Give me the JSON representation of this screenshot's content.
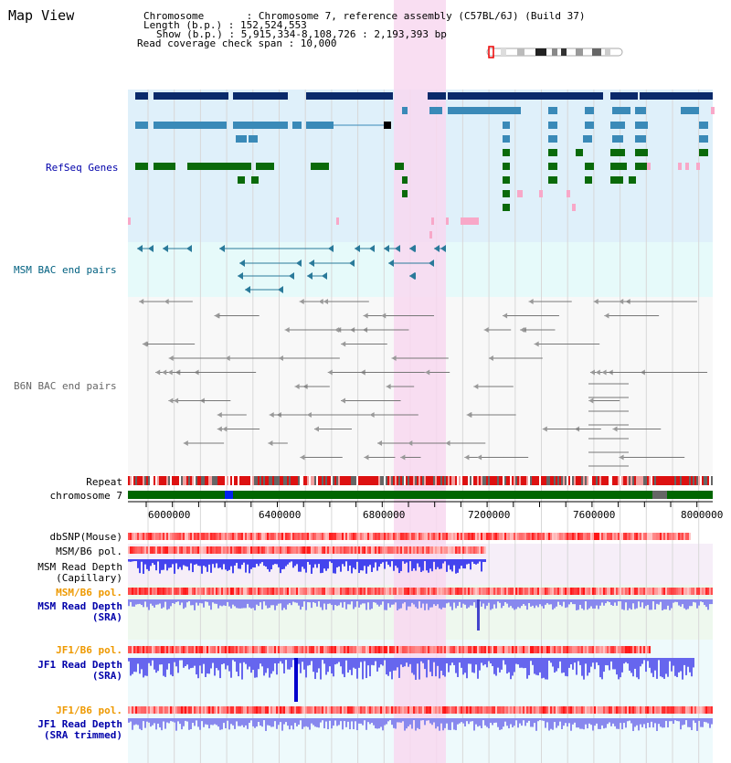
{
  "title": "Map View",
  "info": {
    "chromosome_label": "Chromosome       : Chromosome 7, reference assembly (C57BL/6J) (Build 37)",
    "length_label": "Length (b.p.) : 152,524,553",
    "show_label": "Show (b.p.) : 5,915,334-8,108,726 : 2,193,393 bp",
    "coverage_label": "Read coverage check span : 10,000"
  },
  "tracks": {
    "refseq": "RefSeq Genes",
    "msm_bac": "MSM BAC end pairs",
    "b6n_bac": "B6N BAC end pairs",
    "repeat": "Repeat",
    "chromosome": "chromosome 7",
    "dbsnp": "dbSNP(Mouse)",
    "msm_b6_pol_1": "MSM/B6 pol.",
    "msm_depth_cap_1": "MSM Read Depth",
    "msm_depth_cap_2": "(Capillary)",
    "msm_b6_pol_2": "MSM/B6 pol.",
    "msm_depth_sra_1": "MSM Read Depth",
    "msm_depth_sra_2": "(SRA)",
    "jf1_b6_pol_1": "JF1/B6 pol.",
    "jf1_depth_sra_1": "JF1 Read Depth",
    "jf1_depth_sra_2": "(SRA)",
    "jf1_b6_pol_2": "JF1/B6 pol.",
    "jf1_depth_trim_1": "JF1 Read Depth",
    "jf1_depth_trim_2": "(SRA trimmed)"
  },
  "axis_ticks": [
    "6000000",
    "6400000",
    "6800000",
    "7200000",
    "7600000",
    "8000000"
  ],
  "colors": {
    "refseq_bg": "#dff0fa",
    "msm_bac_bg": "#e6fafa",
    "highlight": "#f8d8f0",
    "gene_dark": "#0a2a6a",
    "gene_mid": "#3a8ab8",
    "gene_green": "#0a6a0a",
    "gene_pink": "#f8a8c8",
    "chrom_green": "#006600"
  }
}
